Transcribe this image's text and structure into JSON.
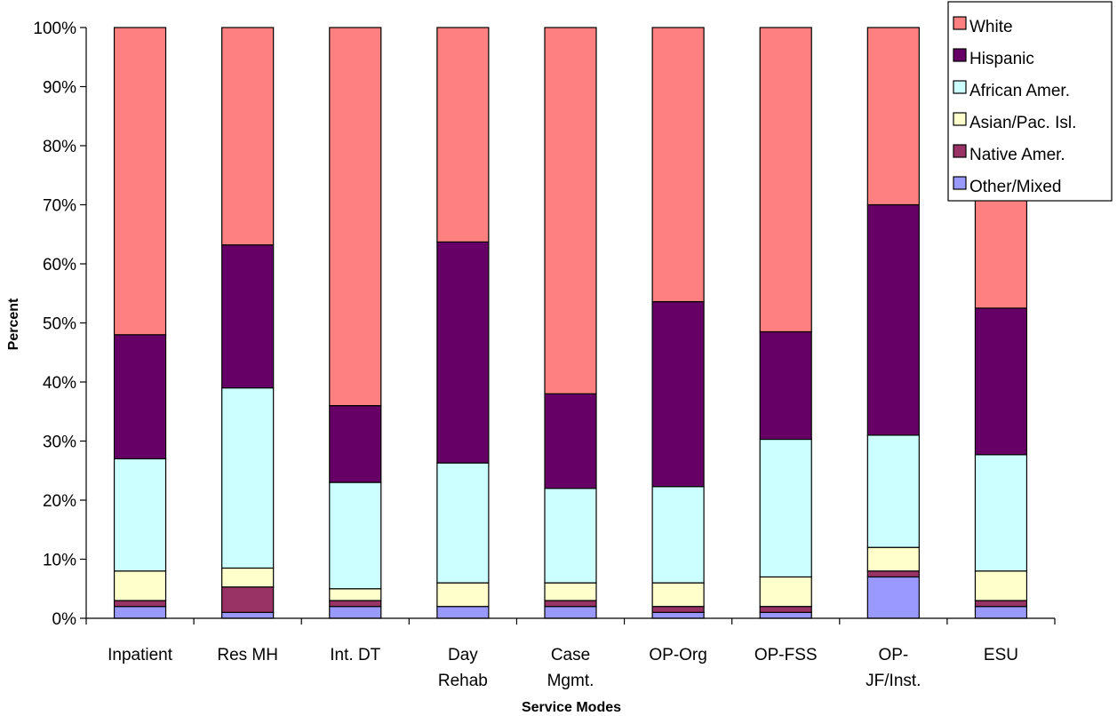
{
  "chart_data": {
    "type": "bar",
    "stacked": true,
    "title": "",
    "xlabel": "Service Modes",
    "ylabel": "Percent",
    "ylim": [
      0,
      100
    ],
    "y_ticks": [
      "0%",
      "10%",
      "20%",
      "30%",
      "40%",
      "50%",
      "60%",
      "70%",
      "80%",
      "90%",
      "100%"
    ],
    "categories": [
      [
        "Inpatient"
      ],
      [
        "Res MH"
      ],
      [
        "Int. DT"
      ],
      [
        "Day",
        "Rehab"
      ],
      [
        "Case",
        "Mgmt."
      ],
      [
        "OP-Org"
      ],
      [
        "OP-FSS"
      ],
      [
        "OP-",
        "JF/Inst."
      ],
      [
        "ESU"
      ]
    ],
    "grid": false,
    "legend_position": "top-right",
    "series": [
      {
        "name": "Other/Mixed",
        "color": "#9999ff",
        "values": [
          2,
          1,
          2,
          2,
          2,
          1,
          1,
          7,
          2
        ]
      },
      {
        "name": "Native Amer.",
        "color": "#993366",
        "values": [
          1,
          4.3,
          1,
          0,
          1,
          1,
          1,
          1,
          1
        ]
      },
      {
        "name": "Asian/Pac. Isl.",
        "color": "#ffffcc",
        "values": [
          5,
          3.2,
          2,
          4,
          3,
          4,
          5,
          4,
          5
        ]
      },
      {
        "name": "African Amer.",
        "color": "#ccffff",
        "values": [
          19,
          30.5,
          18,
          20.3,
          16,
          16.3,
          23.3,
          19,
          19.7
        ]
      },
      {
        "name": "Hispanic",
        "color": "#660066",
        "values": [
          21,
          24.2,
          13,
          37.4,
          16,
          31.3,
          18.2,
          39,
          24.8
        ]
      },
      {
        "name": "White",
        "color": "#ff8080",
        "values": [
          52,
          36.8,
          64,
          36.3,
          62,
          46.4,
          51.5,
          30,
          47.5
        ]
      }
    ],
    "legend_order": [
      "White",
      "Hispanic",
      "African Amer.",
      "Asian/Pac. Isl.",
      "Native Amer.",
      "Other/Mixed"
    ]
  }
}
